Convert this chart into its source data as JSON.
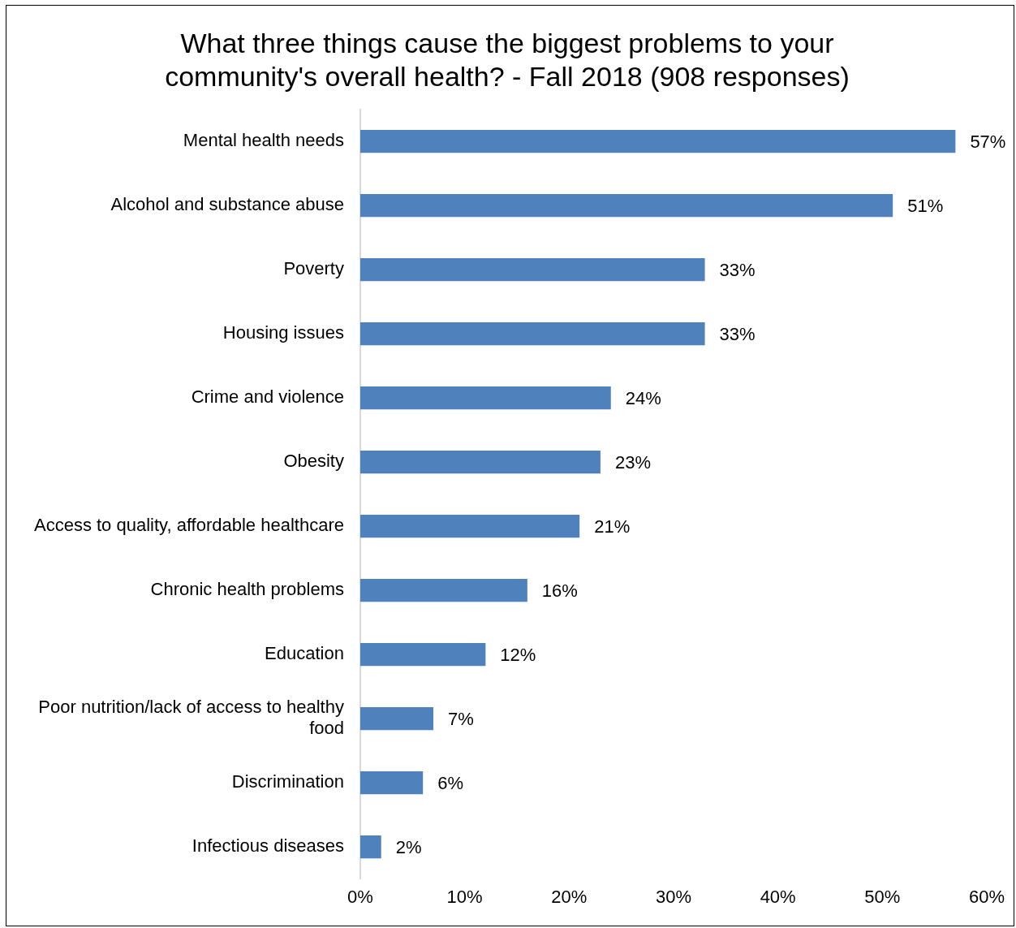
{
  "chart_data": {
    "type": "bar",
    "orientation": "horizontal",
    "title": "What three things cause the biggest problems to your community's overall health? - Fall 2018 (908 responses)",
    "categories": [
      "Mental health needs",
      "Alcohol and substance abuse",
      "Poverty",
      "Housing issues",
      "Crime and violence",
      "Obesity",
      "Access to quality, affordable healthcare",
      "Chronic health problems",
      "Education",
      "Poor nutrition/lack of access to healthy food",
      "Discrimination",
      "Infectious diseases"
    ],
    "values": [
      57,
      51,
      33,
      33,
      24,
      23,
      21,
      16,
      12,
      7,
      6,
      2
    ],
    "value_labels": [
      "57%",
      "51%",
      "33%",
      "33%",
      "24%",
      "23%",
      "21%",
      "16%",
      "12%",
      "7%",
      "6%",
      "2%"
    ],
    "color": "#4f81bd",
    "xlim": [
      0,
      60
    ],
    "xticks": [
      {
        "value": 0,
        "label": "0%"
      },
      {
        "value": 10,
        "label": "10%"
      },
      {
        "value": 20,
        "label": "20%"
      },
      {
        "value": 30,
        "label": "30%"
      },
      {
        "value": 40,
        "label": "40%"
      },
      {
        "value": 50,
        "label": "50%"
      },
      {
        "value": 60,
        "label": "60%"
      }
    ],
    "grid": false,
    "legend": false
  }
}
